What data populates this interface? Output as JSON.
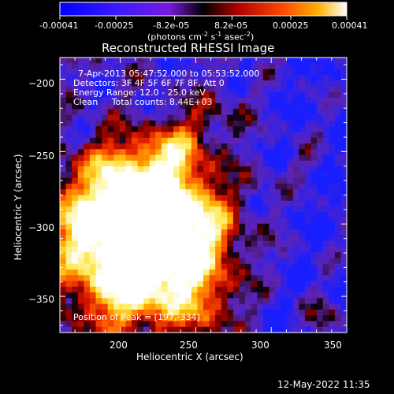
{
  "colorbar": {
    "ticks": [
      "-0.00041",
      "-0.00025",
      "-8.2e-05",
      "8.2e-05",
      "0.00025",
      "0.00041"
    ],
    "tick_values": [
      -0.00041,
      -0.00025,
      -8.2e-05,
      8.2e-05,
      0.00025,
      0.00041
    ],
    "range": [
      -0.00041,
      0.00041
    ],
    "units_main": "(photons cm",
    "units_sup1": "-2",
    "units_mid1": " s",
    "units_sup2": "-1",
    "units_mid2": " asec",
    "units_sup3": "-2",
    "units_end": ")"
  },
  "chart_data": {
    "type": "heatmap",
    "title": "Reconstructed RHESSI Image",
    "xlabel": "Heliocentric X (arcsec)",
    "ylabel": "Heliocentric Y (arcsec)",
    "xlim": [
      160,
      350
    ],
    "ylim": [
      -375,
      -185
    ],
    "xticks": [
      200,
      250,
      300,
      350
    ],
    "yticks": [
      -200,
      -250,
      -300,
      -350
    ],
    "xtick_labels": [
      "200",
      "250",
      "300",
      "350"
    ],
    "ytick_labels": [
      "−200",
      "−250",
      "−300",
      "−350"
    ],
    "peak_position": [
      197,
      -334
    ],
    "annotations": [
      "7-Apr-2013 05:47:52.000 to 05:53:52.000",
      "Detectors: 3F 4F 5F 6F 7F 8F, Att 0",
      "Energy Range: 12.0 - 25.0 keV",
      "Clean     Total counts: 8.44E+03",
      "Position of Peak = [197,-334]"
    ]
  },
  "footer": {
    "timestamp": "12-May-2022 11:35"
  }
}
